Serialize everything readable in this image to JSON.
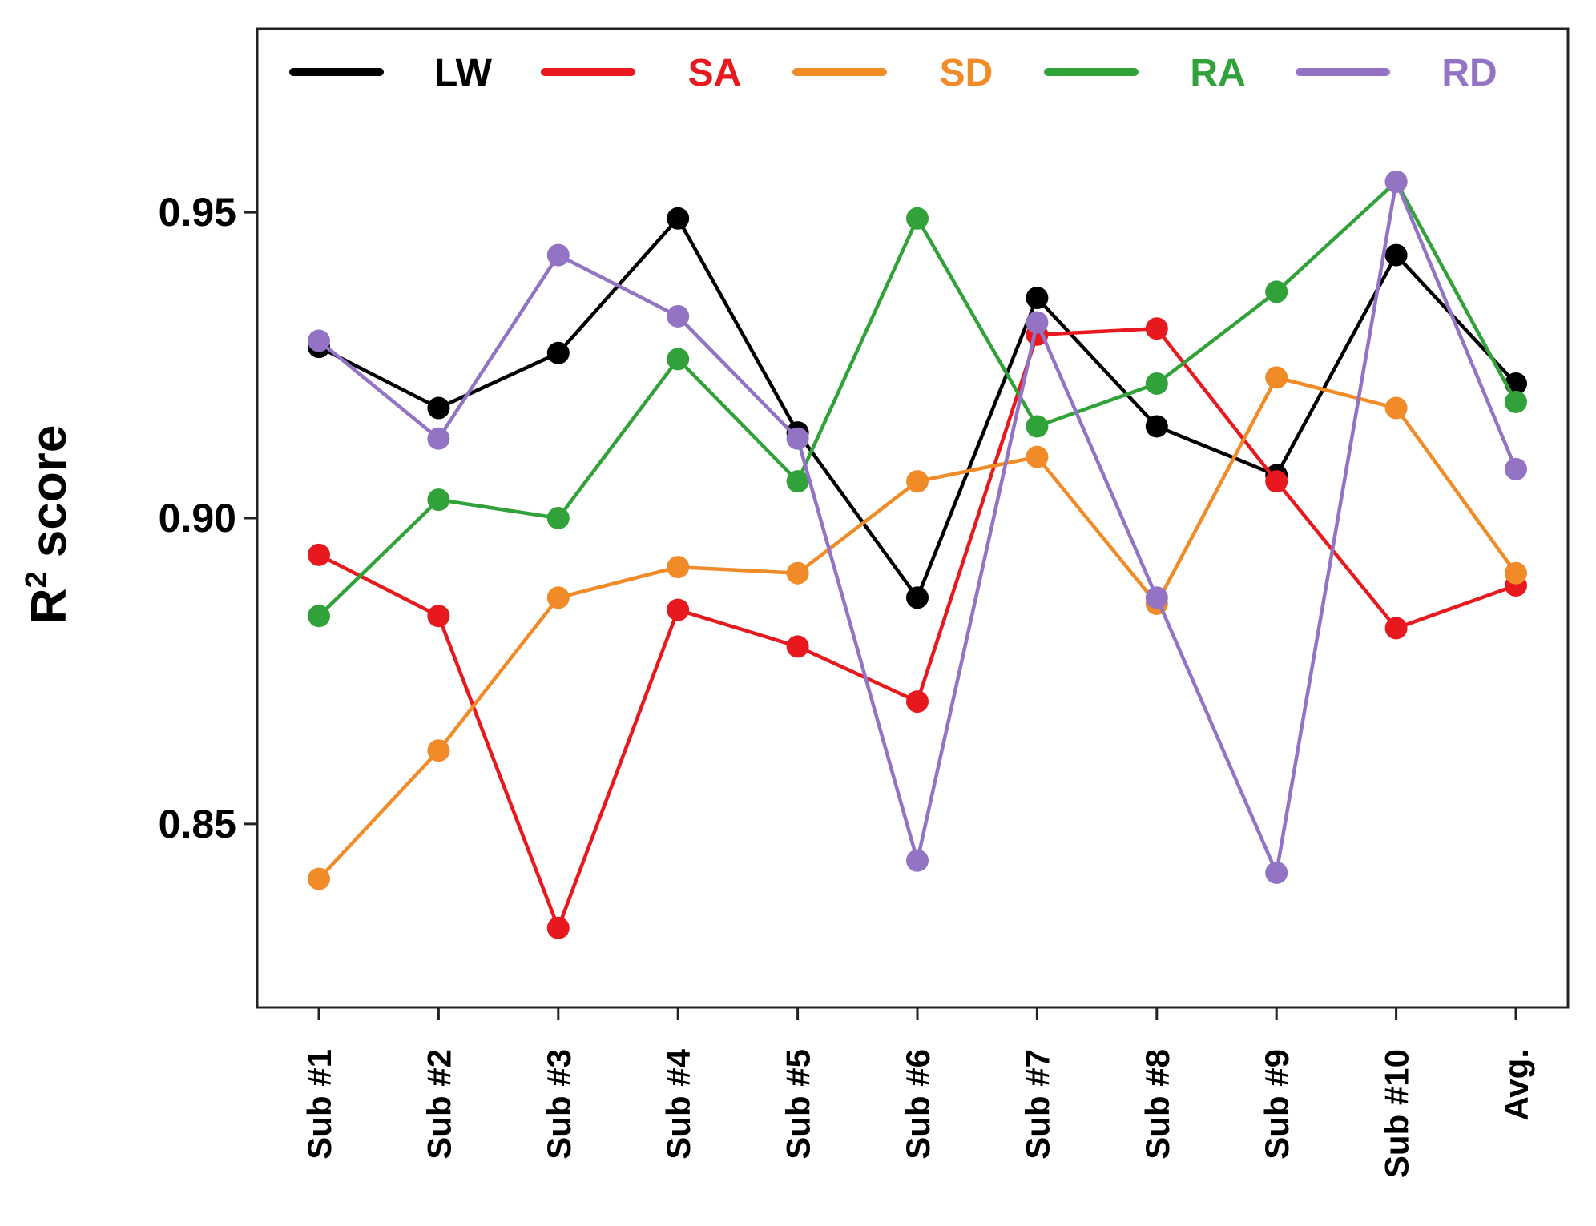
{
  "chart_data": {
    "type": "line",
    "title": "",
    "xlabel": "",
    "ylabel": "R",
    "ylabel_superscript": "2",
    "ylabel_suffix": " score",
    "categories": [
      "Sub #1",
      "Sub #2",
      "Sub #3",
      "Sub #4",
      "Sub #5",
      "Sub #6",
      "Sub #7",
      "Sub #8",
      "Sub #9",
      "Sub #10",
      "Avg."
    ],
    "ylim": [
      0.82,
      0.98
    ],
    "yticks": [
      0.85,
      0.9,
      0.95
    ],
    "ytick_labels": [
      "0.85",
      "0.90",
      "0.95"
    ],
    "grid": false,
    "legend_position": "top",
    "series": [
      {
        "name": "LW",
        "color": "#000000",
        "values": [
          0.928,
          0.918,
          0.927,
          0.949,
          0.914,
          0.887,
          0.936,
          0.915,
          0.907,
          0.943,
          0.922
        ]
      },
      {
        "name": "SA",
        "color": "#e8191e",
        "values": [
          0.894,
          0.884,
          0.833,
          0.885,
          0.879,
          0.87,
          0.93,
          0.931,
          0.906,
          0.882,
          0.889
        ]
      },
      {
        "name": "SD",
        "color": "#f08b28",
        "values": [
          0.841,
          0.862,
          0.887,
          0.892,
          0.891,
          0.906,
          0.91,
          0.886,
          0.923,
          0.918,
          0.891
        ]
      },
      {
        "name": "RA",
        "color": "#31a13a",
        "values": [
          0.884,
          0.903,
          0.9,
          0.926,
          0.906,
          0.949,
          0.915,
          0.922,
          0.937,
          0.955,
          0.919
        ]
      },
      {
        "name": "RD",
        "color": "#9373c4",
        "values": [
          0.929,
          0.913,
          0.943,
          0.933,
          0.913,
          0.844,
          0.932,
          0.887,
          0.842,
          0.955,
          0.908
        ]
      }
    ]
  }
}
